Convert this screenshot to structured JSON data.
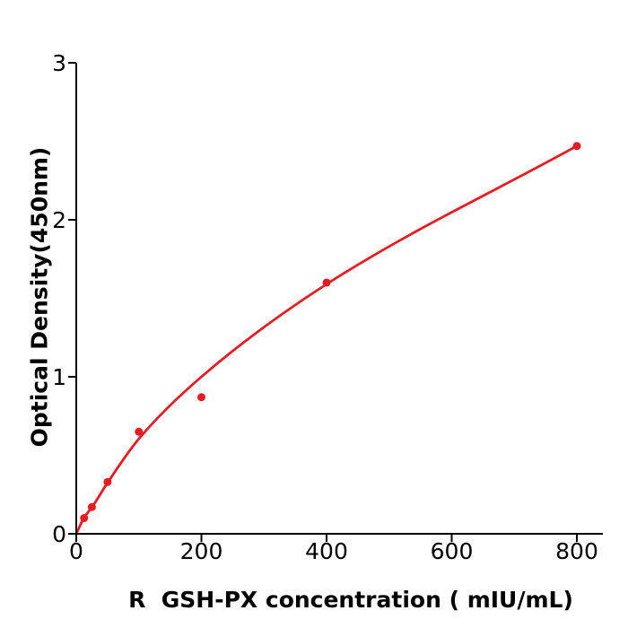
{
  "chart_data": {
    "type": "scatter",
    "title": "",
    "xlabel": "R  GSH-PX concentration ( mIU/mL)",
    "ylabel": "Optical Density(450nm)",
    "x": [
      12.5,
      25,
      50,
      100,
      200,
      400,
      800
    ],
    "y": [
      0.1,
      0.17,
      0.33,
      0.65,
      0.87,
      1.6,
      2.47
    ],
    "fit_curve_points": [
      [
        0,
        0
      ],
      [
        12.5,
        0.103
      ],
      [
        25,
        0.169
      ],
      [
        50,
        0.325
      ],
      [
        100,
        0.605
      ],
      [
        200,
        1.0
      ],
      [
        400,
        1.59
      ],
      [
        800,
        2.47
      ]
    ],
    "xticks": [
      0,
      200,
      400,
      600,
      800
    ],
    "yticks": [
      0,
      1,
      2,
      3
    ],
    "xlim": [
      0,
      842
    ],
    "ylim": [
      0,
      3
    ],
    "grid": false,
    "legend": null,
    "marker_color": "#ea1a21",
    "line_color": "#ea1a21",
    "axis_color": "#000000",
    "tick_label_color": "#000000"
  }
}
